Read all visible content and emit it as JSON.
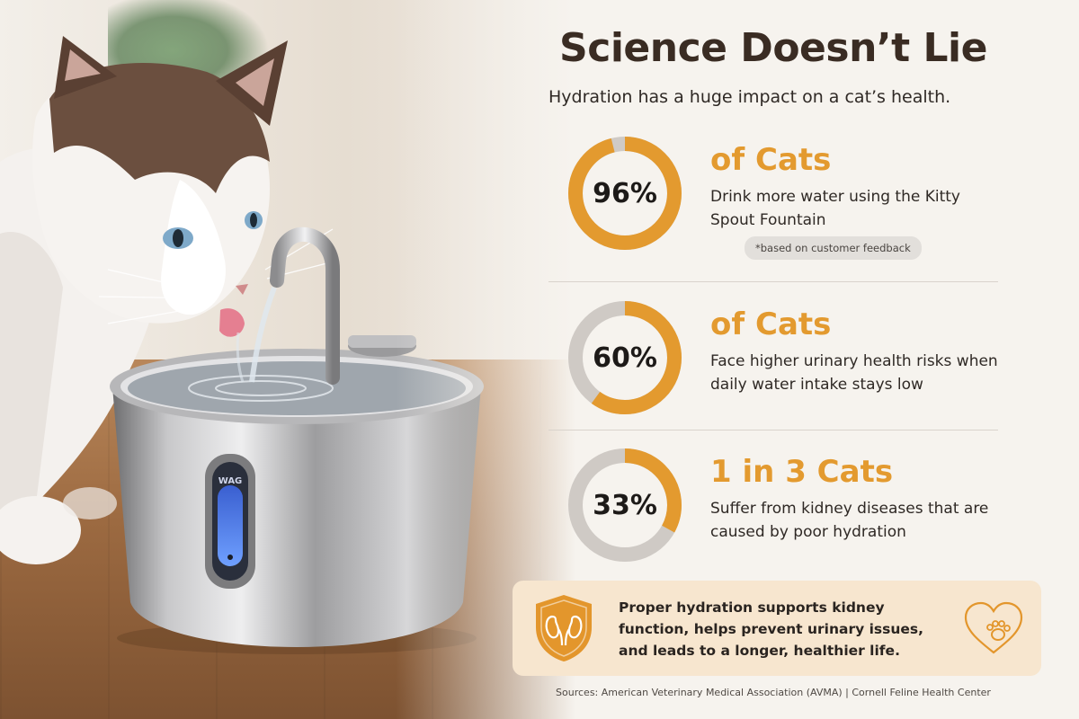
{
  "headline": "Science Doesn’t Lie",
  "subhead": "Hydration has a huge impact on a cat’s health.",
  "stats": [
    {
      "percent_text": "96%",
      "percent_value": 96,
      "label": "of Cats",
      "description": "Drink more water using the Kitty Spout Fountain",
      "note": "*based on customer feedback"
    },
    {
      "percent_text": "60%",
      "percent_value": 60,
      "label": "of Cats",
      "description": "Face higher urinary health risks when daily water intake stays low"
    },
    {
      "percent_text": "33%",
      "percent_value": 33,
      "label": "1 in 3 Cats",
      "description": "Suffer from kidney diseases that are caused by poor hydration"
    }
  ],
  "callout": {
    "text": "Proper hydration supports kidney function, helps prevent urinary issues, and leads to a longer, healthier life.",
    "left_icon": "kidney-shield-icon",
    "right_icon": "heart-paw-icon"
  },
  "fountain_window_text": "WAG",
  "sources": "Sources: American Veterinary Medical Association (AVMA) | Cornell Feline Health Center",
  "colors": {
    "accent": "#e39a2f",
    "ring_track": "#cfcac5",
    "headline": "#3a2c23",
    "callout_bg": "#f7e6cf"
  }
}
